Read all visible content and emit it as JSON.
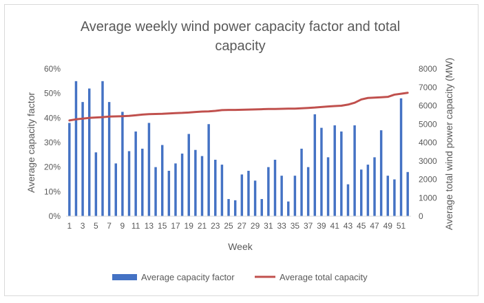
{
  "chart_data": {
    "type": "bar+line",
    "title_lines": [
      "Average weekly wind power capacity factor and total",
      "capacity"
    ],
    "xlabel": "Week",
    "ylabel_left": "Average capacity factor",
    "ylabel_right": "Average total wind power capacity (MW)",
    "x": [
      1,
      2,
      3,
      4,
      5,
      6,
      7,
      8,
      9,
      10,
      11,
      12,
      13,
      14,
      15,
      16,
      17,
      18,
      19,
      20,
      21,
      22,
      23,
      24,
      25,
      26,
      27,
      28,
      29,
      30,
      31,
      32,
      33,
      34,
      35,
      36,
      37,
      38,
      39,
      40,
      41,
      42,
      43,
      44,
      45,
      46,
      47,
      48,
      49,
      50,
      51,
      52
    ],
    "x_tick_labels": [
      "1",
      "3",
      "5",
      "7",
      "9",
      "11",
      "13",
      "15",
      "17",
      "19",
      "21",
      "23",
      "25",
      "27",
      "29",
      "31",
      "33",
      "35",
      "37",
      "39",
      "41",
      "43",
      "45",
      "47",
      "49",
      "51"
    ],
    "y_left_ticks": [
      "0%",
      "10%",
      "20%",
      "30%",
      "40%",
      "50%",
      "60%"
    ],
    "y_left_range": [
      0,
      0.6
    ],
    "y_right_ticks": [
      "0",
      "1000",
      "2000",
      "3000",
      "4000",
      "5000",
      "6000",
      "7000",
      "8000"
    ],
    "y_right_range": [
      0,
      8000
    ],
    "grid": false,
    "legend_position": "bottom",
    "series": [
      {
        "name": "Average capacity factor",
        "kind": "bar",
        "axis": "left",
        "color": "#4472c4",
        "values": [
          0.38,
          0.55,
          0.465,
          0.52,
          0.26,
          0.55,
          0.465,
          0.215,
          0.425,
          0.265,
          0.345,
          0.275,
          0.38,
          0.2,
          0.29,
          0.185,
          0.215,
          0.255,
          0.335,
          0.27,
          0.245,
          0.375,
          0.23,
          0.21,
          0.07,
          0.065,
          0.17,
          0.185,
          0.145,
          0.07,
          0.2,
          0.23,
          0.165,
          0.06,
          0.165,
          0.275,
          0.2,
          0.415,
          0.36,
          0.24,
          0.37,
          0.345,
          0.13,
          0.37,
          0.19,
          0.21,
          0.24,
          0.35,
          0.165,
          0.15,
          0.48,
          0.18
        ]
      },
      {
        "name": "Average total capacity",
        "kind": "line",
        "axis": "right",
        "color": "#c0504d",
        "values": [
          5200,
          5260,
          5300,
          5340,
          5360,
          5380,
          5410,
          5420,
          5430,
          5450,
          5480,
          5520,
          5540,
          5550,
          5560,
          5580,
          5600,
          5610,
          5630,
          5660,
          5680,
          5690,
          5720,
          5760,
          5770,
          5770,
          5780,
          5790,
          5800,
          5810,
          5820,
          5820,
          5830,
          5840,
          5840,
          5860,
          5880,
          5900,
          5930,
          5960,
          5980,
          6000,
          6060,
          6160,
          6340,
          6420,
          6440,
          6460,
          6480,
          6600,
          6650,
          6700
        ]
      }
    ]
  }
}
